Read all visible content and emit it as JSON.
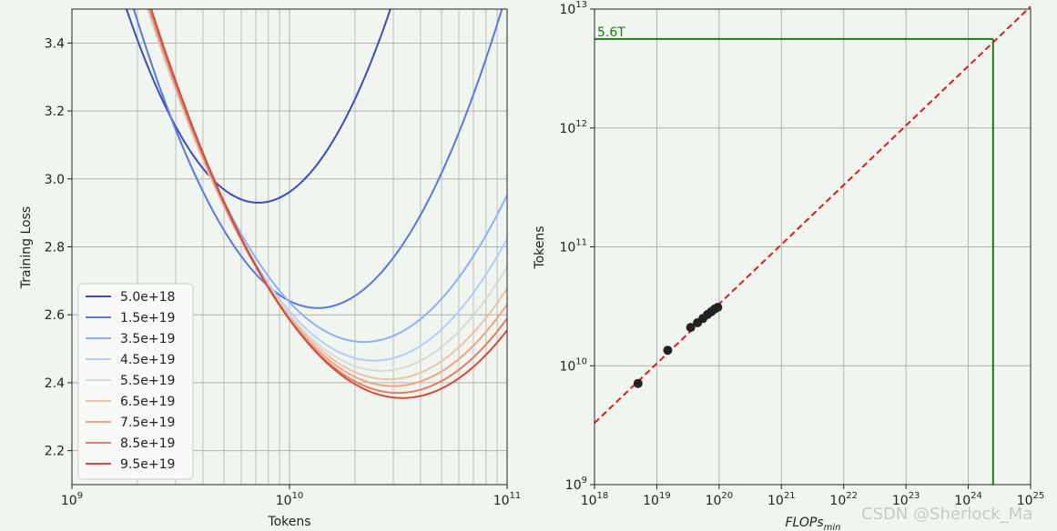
{
  "chart_data": [
    {
      "type": "line",
      "xlabel": "Tokens",
      "ylabel": "Training Loss",
      "xscale": "log",
      "xlim": [
        1000000000.0,
        100000000000.0
      ],
      "ylim": [
        2.1,
        3.5
      ],
      "xticks": [
        {
          "v": 1000000000.0,
          "base": "10",
          "exp": "9"
        },
        {
          "v": 10000000000.0,
          "base": "10",
          "exp": "10"
        },
        {
          "v": 100000000000.0,
          "base": "10",
          "exp": "11"
        }
      ],
      "yticks": [
        {
          "v": 2.2,
          "label": "2.2"
        },
        {
          "v": 2.4,
          "label": "2.4"
        },
        {
          "v": 2.6,
          "label": "2.6"
        },
        {
          "v": 2.8,
          "label": "2.8"
        },
        {
          "v": 3.0,
          "label": "3.0"
        },
        {
          "v": 3.2,
          "label": "3.2"
        },
        {
          "v": 3.4,
          "label": "3.4"
        }
      ],
      "grid": true,
      "legend_position": "lower left",
      "series": [
        {
          "name": "5.0e+18",
          "color": "#3b4cc0",
          "min_tokens": 7200000000.0,
          "min_loss": 2.93,
          "k": 1.55
        },
        {
          "name": "1.5e+19",
          "color": "#5977e3",
          "min_tokens": 13500000000.0,
          "min_loss": 2.62,
          "k": 1.23
        },
        {
          "name": "3.5e+19",
          "color": "#8db0fe",
          "min_tokens": 22000000000.0,
          "min_loss": 2.52,
          "k": 1.0
        },
        {
          "name": "4.5e+19",
          "color": "#b5cdfa",
          "min_tokens": 24500000000.0,
          "min_loss": 2.465,
          "k": 0.96
        },
        {
          "name": "5.5e+19",
          "color": "#d4dbd4",
          "min_tokens": 26500000000.0,
          "min_loss": 2.435,
          "k": 0.92
        },
        {
          "name": "6.5e+19",
          "color": "#eac3a8",
          "min_tokens": 28500000000.0,
          "min_loss": 2.41,
          "k": 0.9
        },
        {
          "name": "7.5e+19",
          "color": "#f2a385",
          "min_tokens": 30000000000.0,
          "min_loss": 2.39,
          "k": 0.88
        },
        {
          "name": "8.5e+19",
          "color": "#e67c62",
          "min_tokens": 31500000000.0,
          "min_loss": 2.37,
          "k": 0.87
        },
        {
          "name": "9.5e+19",
          "color": "#d24d3e",
          "min_tokens": 33000000000.0,
          "min_loss": 2.355,
          "k": 0.86
        }
      ]
    },
    {
      "type": "scatter",
      "xlabel_main": "FLOPs",
      "xlabel_sub": "min",
      "ylabel": "Tokens",
      "xscale": "log",
      "yscale": "log",
      "xlim": [
        1e+18,
        1e+25
      ],
      "ylim": [
        1000000000.0,
        10000000000000.0
      ],
      "xticks": [
        {
          "v": 1e+18,
          "base": "10",
          "exp": "18"
        },
        {
          "v": 1e+19,
          "base": "10",
          "exp": "19"
        },
        {
          "v": 1e+20,
          "base": "10",
          "exp": "20"
        },
        {
          "v": 1e+21,
          "base": "10",
          "exp": "21"
        },
        {
          "v": 1e+22,
          "base": "10",
          "exp": "22"
        },
        {
          "v": 1e+23,
          "base": "10",
          "exp": "23"
        },
        {
          "v": 1e+24,
          "base": "10",
          "exp": "24"
        },
        {
          "v": 1e+25,
          "base": "10",
          "exp": "25"
        }
      ],
      "yticks": [
        {
          "v": 1000000000.0,
          "base": "10",
          "exp": "9"
        },
        {
          "v": 10000000000.0,
          "base": "10",
          "exp": "10"
        },
        {
          "v": 100000000000.0,
          "base": "10",
          "exp": "11"
        },
        {
          "v": 1000000000000.0,
          "base": "10",
          "exp": "12"
        },
        {
          "v": 10000000000000.0,
          "base": "10",
          "exp": "13"
        }
      ],
      "grid": true,
      "points": [
        {
          "x": 5e+18,
          "y": 7100000000.0
        },
        {
          "x": 1.5e+19,
          "y": 13500000000.0
        },
        {
          "x": 3.5e+19,
          "y": 21000000000.0
        },
        {
          "x": 4.5e+19,
          "y": 23000000000.0
        },
        {
          "x": 5.5e+19,
          "y": 25000000000.0
        },
        {
          "x": 6.5e+19,
          "y": 27000000000.0
        },
        {
          "x": 7.5e+19,
          "y": 28500000000.0
        },
        {
          "x": 8.5e+19,
          "y": 30000000000.0
        },
        {
          "x": 9.5e+19,
          "y": 31000000000.0
        }
      ],
      "fit_line": {
        "color": "#dd1c1c",
        "style": "dashed",
        "x": [
          1e+18,
          1e+25
        ],
        "y": [
          3300000000.0,
          10500000000000.0
        ]
      },
      "reference": {
        "color": "#1a7a1a",
        "x": 2.5e+24,
        "y": 5600000000000.0,
        "label": "5.6T"
      }
    }
  ],
  "watermark": "CSDN @Sherlock_Ma"
}
